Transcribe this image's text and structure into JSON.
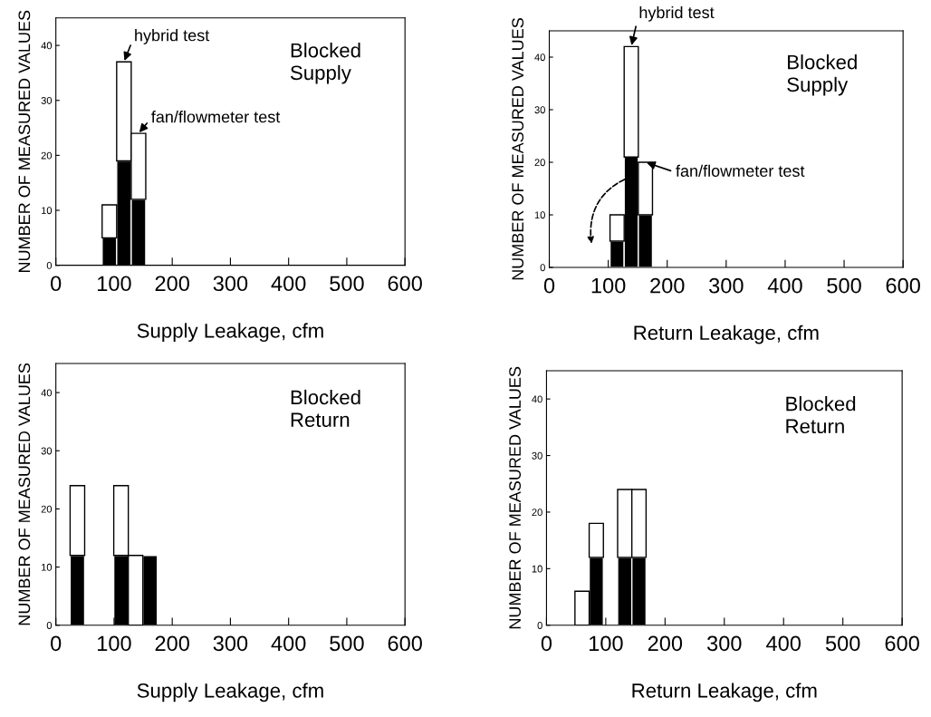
{
  "chart_data": [
    {
      "type": "bar",
      "stacked": true,
      "x": [
        92,
        117,
        142
      ],
      "series": [
        {
          "color": "#000000",
          "values": [
            5,
            19,
            12
          ]
        },
        {
          "color": "#ffffff",
          "values": [
            6,
            18,
            12
          ]
        }
      ],
      "xlim": [
        0,
        600
      ],
      "xticks": [
        0,
        100,
        200,
        300,
        400,
        500,
        600
      ],
      "ylim": [
        0,
        45
      ],
      "yticks": [
        0,
        10,
        20,
        30,
        40
      ],
      "xlabel": "Supply Leakage, cfm",
      "ylabel": "NUMBER OF MEASURED VALUES",
      "grid": false,
      "annotations": [
        {
          "text": "hybrid test",
          "x": 117,
          "y": 37
        },
        {
          "text": "fan/flowmeter test",
          "x": 142,
          "y": 24
        },
        "Blocked\nSupply"
      ]
    },
    {
      "type": "bar",
      "stacked": true,
      "x": [
        115,
        139,
        163
      ],
      "series": [
        {
          "color": "#000000",
          "values": [
            5,
            21,
            10
          ]
        },
        {
          "color": "#ffffff",
          "values": [
            5,
            21,
            10
          ]
        }
      ],
      "xlim": [
        0,
        600
      ],
      "xticks": [
        0,
        100,
        200,
        300,
        400,
        500,
        600
      ],
      "ylim": [
        0,
        45
      ],
      "yticks": [
        0,
        10,
        20,
        30,
        40
      ],
      "xlabel": "Return Leakage, cfm",
      "ylabel": "NUMBER OF MEASURED VALUES",
      "grid": false,
      "annotations": [
        {
          "text": "hybrid test",
          "x": 139,
          "y": 42
        },
        {
          "text": "fan/flowmeter test",
          "x": 163,
          "y": 20
        },
        "Blocked\nSupply"
      ]
    },
    {
      "type": "bar",
      "stacked": true,
      "x": [
        37,
        112,
        137,
        162
      ],
      "series": [
        {
          "color": "#000000",
          "values": [
            12,
            12,
            0,
            12
          ]
        },
        {
          "color": "#ffffff",
          "values": [
            12,
            12,
            12,
            0
          ]
        }
      ],
      "xlim": [
        0,
        600
      ],
      "xticks": [
        0,
        100,
        200,
        300,
        400,
        500,
        600
      ],
      "ylim": [
        0,
        45
      ],
      "yticks": [
        0,
        10,
        20,
        30,
        40
      ],
      "xlabel": "Supply Leakage, cfm",
      "ylabel": "NUMBER OF MEASURED VALUES",
      "grid": false,
      "annotations": [
        "Blocked\nReturn"
      ]
    },
    {
      "type": "bar",
      "stacked": true,
      "x": [
        60,
        84,
        132,
        156
      ],
      "series": [
        {
          "color": "#000000",
          "values": [
            0,
            12,
            12,
            12
          ]
        },
        {
          "color": "#ffffff",
          "values": [
            6,
            6,
            12,
            12
          ]
        }
      ],
      "xlim": [
        0,
        600
      ],
      "xticks": [
        0,
        100,
        200,
        300,
        400,
        500,
        600
      ],
      "ylim": [
        0,
        45
      ],
      "yticks": [
        0,
        10,
        20,
        30,
        40
      ],
      "xlabel": "Return Leakage, cfm",
      "ylabel": "NUMBER OF MEASURED VALUES",
      "grid": false,
      "annotations": [
        "Blocked\nReturn"
      ]
    }
  ]
}
